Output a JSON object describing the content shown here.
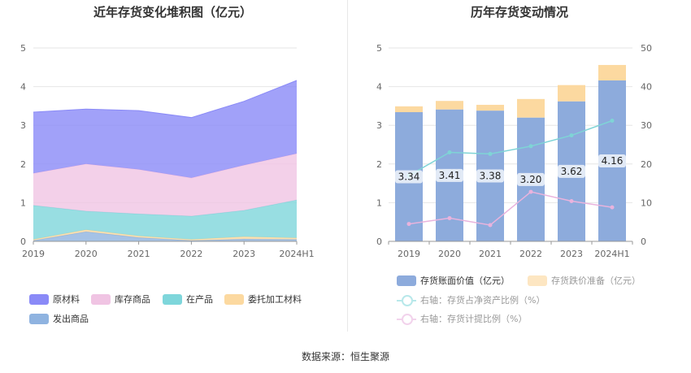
{
  "left_chart": {
    "title": "近年存货变化堆积图（亿元）",
    "legend": [
      "原材料",
      "库存商品",
      "在产品",
      "委托加工材料",
      "发出商品"
    ]
  },
  "right_chart": {
    "title": "历年存货变动情况",
    "legend": [
      "存货账面价值（亿元）",
      "存货跌价准备（亿元）",
      "右轴：存货占净资产比例（%）",
      "右轴：存货计提比例（%）"
    ]
  },
  "source": "数据来源：恒生聚源",
  "chart_data": [
    {
      "type": "area",
      "stacked": true,
      "title": "近年存货变化堆积图（亿元）",
      "categories": [
        "2019",
        "2020",
        "2021",
        "2022",
        "2023",
        "2024H1"
      ],
      "ylim": [
        0,
        5
      ],
      "yticks": [
        "0",
        "1",
        "2",
        "3",
        "4",
        "5"
      ],
      "grid": true,
      "legend_position": "bottom",
      "series": [
        {
          "name": "发出商品",
          "color": "#8fb3e0",
          "values": [
            0.02,
            0.25,
            0.1,
            0.02,
            0.06,
            0.05
          ]
        },
        {
          "name": "委托加工材料",
          "color": "#fcd9a0",
          "values": [
            0.03,
            0.05,
            0.04,
            0.03,
            0.06,
            0.04
          ]
        },
        {
          "name": "在产品",
          "color": "#7ed6db",
          "values": [
            0.88,
            0.48,
            0.57,
            0.6,
            0.68,
            0.98
          ]
        },
        {
          "name": "库存商品",
          "color": "#f0c4e3",
          "values": [
            0.83,
            1.22,
            1.15,
            0.99,
            1.17,
            1.2
          ]
        },
        {
          "name": "原材料",
          "color": "#8a8af7",
          "values": [
            1.58,
            1.42,
            1.52,
            1.56,
            1.65,
            1.89
          ]
        }
      ]
    },
    {
      "type": "bar",
      "stacked": true,
      "title": "历年存货变动情况",
      "categories": [
        "2019",
        "2020",
        "2021",
        "2022",
        "2023",
        "2024H1"
      ],
      "ylim": [
        0,
        5
      ],
      "yticks": [
        "0",
        "1",
        "2",
        "3",
        "4",
        "5"
      ],
      "y2lim": [
        0,
        50
      ],
      "y2ticks": [
        "0",
        "10",
        "20",
        "30",
        "40",
        "50"
      ],
      "grid": true,
      "legend_position": "bottom",
      "series": [
        {
          "name": "存货账面价值（亿元）",
          "kind": "bar",
          "axis": "left",
          "color": "#8dabdc",
          "values": [
            3.34,
            3.41,
            3.38,
            3.2,
            3.62,
            4.16
          ],
          "labels": [
            "3.34",
            "3.41",
            "3.38",
            "3.20",
            "3.62",
            "4.16"
          ]
        },
        {
          "name": "存货跌价准备（亿元）",
          "kind": "bar",
          "axis": "left",
          "color": "#fcd9a0",
          "values": [
            0.15,
            0.22,
            0.15,
            0.48,
            0.42,
            0.4
          ]
        },
        {
          "name": "右轴：存货占净资产比例（%）",
          "kind": "line",
          "axis": "right",
          "color": "#7fd4d6",
          "values": [
            17.0,
            23.0,
            22.6,
            24.6,
            27.4,
            31.2
          ]
        },
        {
          "name": "右轴：存货计提比例（%）",
          "kind": "line",
          "axis": "right",
          "color": "#e9b3dd",
          "values": [
            4.5,
            6.0,
            4.2,
            12.8,
            10.4,
            8.8
          ]
        }
      ]
    }
  ]
}
